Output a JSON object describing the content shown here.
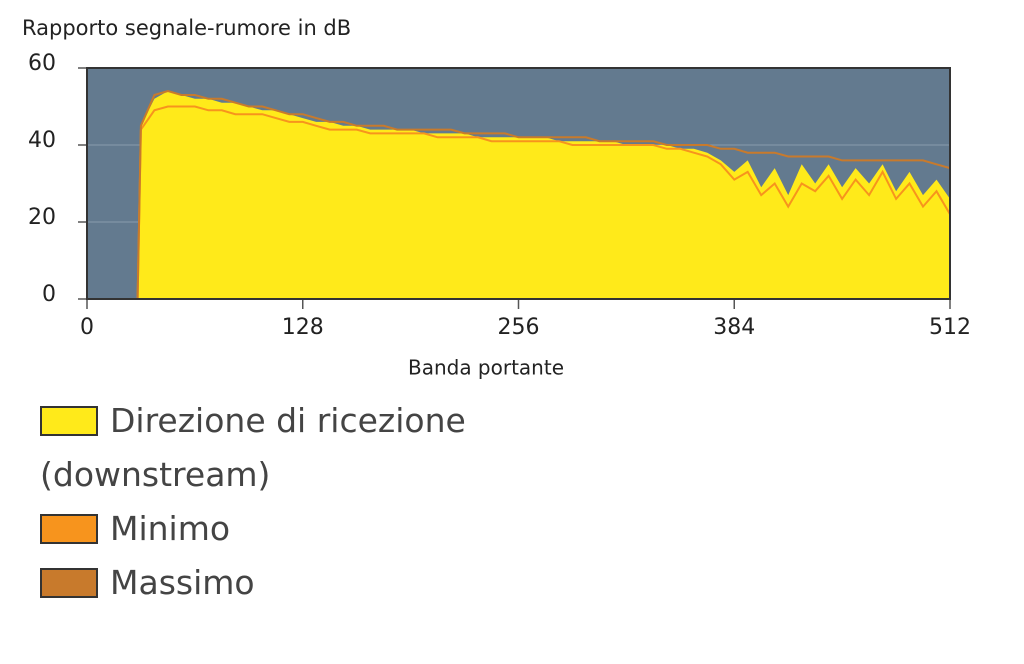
{
  "chart_data": {
    "type": "area",
    "title": "Rapporto segnale-rumore in dB",
    "x_label": "Banda portante",
    "x": [
      0,
      16,
      30,
      32,
      40,
      48,
      56,
      64,
      72,
      80,
      88,
      96,
      104,
      112,
      120,
      128,
      136,
      144,
      152,
      160,
      168,
      176,
      184,
      192,
      200,
      208,
      216,
      224,
      232,
      240,
      248,
      256,
      264,
      272,
      280,
      288,
      296,
      304,
      312,
      320,
      328,
      336,
      344,
      352,
      360,
      368,
      376,
      384,
      392,
      400,
      408,
      416,
      424,
      432,
      440,
      448,
      456,
      464,
      472,
      480,
      488,
      496,
      504,
      512
    ],
    "series": [
      {
        "name": "Direzione di ricezione (downstream)",
        "color": "#ffea1a",
        "style": "area",
        "values": [
          0,
          0,
          0,
          45,
          52,
          54,
          53,
          52,
          52,
          51,
          51,
          50,
          49,
          49,
          48,
          47,
          46,
          46,
          45,
          45,
          44,
          44,
          44,
          44,
          43,
          43,
          43,
          43,
          42,
          42,
          42,
          42,
          42,
          42,
          41,
          41,
          41,
          41,
          41,
          40,
          40,
          40,
          40,
          39,
          39,
          38,
          36,
          33,
          36,
          29,
          34,
          27,
          35,
          30,
          35,
          29,
          34,
          30,
          35,
          28,
          33,
          27,
          31,
          26
        ]
      },
      {
        "name": "Minimo",
        "color": "#f7941d",
        "style": "line",
        "values": [
          0,
          0,
          0,
          44,
          49,
          50,
          50,
          50,
          49,
          49,
          48,
          48,
          48,
          47,
          46,
          46,
          45,
          44,
          44,
          44,
          43,
          43,
          43,
          43,
          43,
          42,
          42,
          42,
          42,
          41,
          41,
          41,
          41,
          41,
          41,
          40,
          40,
          40,
          40,
          40,
          40,
          40,
          39,
          39,
          38,
          37,
          35,
          31,
          33,
          27,
          30,
          24,
          30,
          28,
          32,
          26,
          31,
          27,
          33,
          26,
          30,
          24,
          28,
          22
        ]
      },
      {
        "name": "Massimo",
        "color": "#c87a2c",
        "style": "line",
        "values": [
          0,
          0,
          0,
          45,
          53,
          54,
          53,
          53,
          52,
          52,
          51,
          50,
          50,
          49,
          48,
          48,
          47,
          46,
          46,
          45,
          45,
          45,
          44,
          44,
          44,
          44,
          44,
          43,
          43,
          43,
          43,
          42,
          42,
          42,
          42,
          42,
          42,
          41,
          41,
          41,
          41,
          41,
          40,
          40,
          40,
          40,
          39,
          39,
          38,
          38,
          38,
          37,
          37,
          37,
          37,
          36,
          36,
          36,
          36,
          36,
          36,
          36,
          35,
          34
        ]
      }
    ],
    "xlim": [
      0,
      512
    ],
    "xticks": [
      0,
      128,
      256,
      384,
      512
    ],
    "ylim": [
      0,
      60
    ],
    "yticks": [
      0,
      20,
      40,
      60
    ],
    "grid": true,
    "plot_background": "#637a8f"
  }
}
